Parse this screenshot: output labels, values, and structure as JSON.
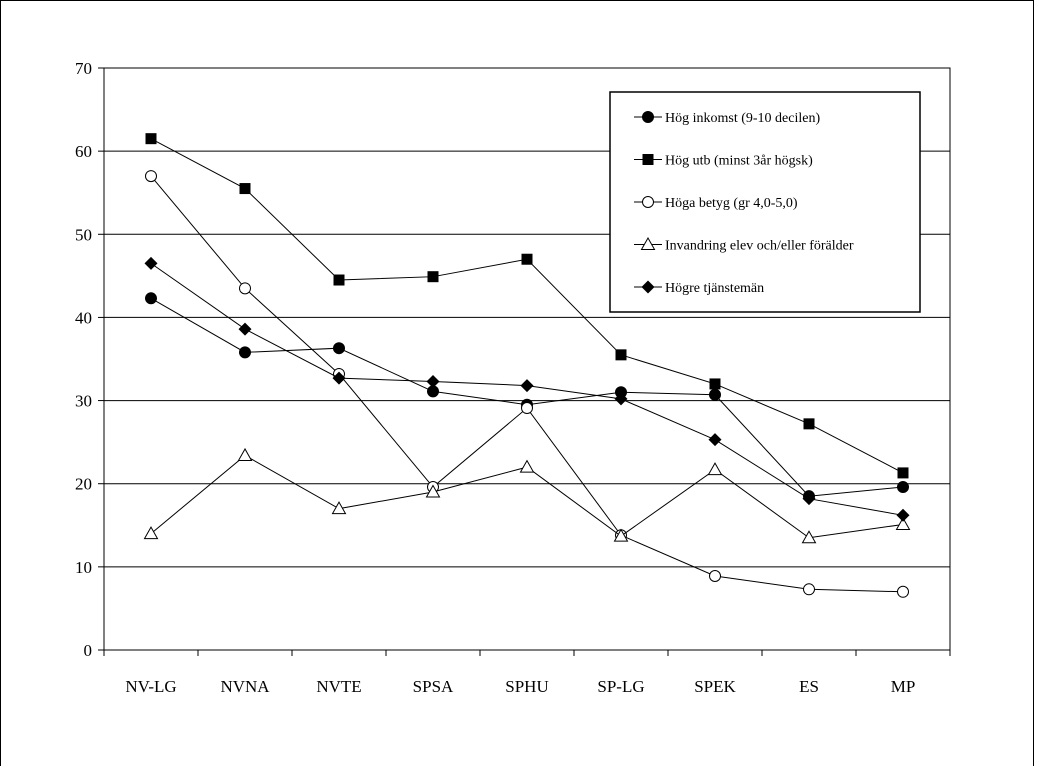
{
  "chart_data": {
    "type": "line",
    "categories": [
      "NV-LG",
      "NVNA",
      "NVTE",
      "SPSA",
      "SPHU",
      "SP-LG",
      "SPEK",
      "ES",
      "MP"
    ],
    "ylim": [
      0,
      70
    ],
    "yticks": [
      "0",
      "10",
      "20",
      "30",
      "40",
      "50",
      "60",
      "70"
    ],
    "grid": true,
    "legend_position": "top-right",
    "series": [
      {
        "name": "Hög inkomst (9-10 decilen)",
        "marker": "filled-circle",
        "values": [
          42.3,
          35.8,
          36.3,
          31.1,
          29.5,
          31.0,
          30.7,
          18.5,
          19.6
        ]
      },
      {
        "name": "Hög utb (minst 3år högsk)",
        "marker": "filled-square",
        "values": [
          61.5,
          55.5,
          44.5,
          44.9,
          47.0,
          35.5,
          32.0,
          27.2,
          21.3
        ]
      },
      {
        "name": "Höga betyg (gr 4,0-5,0)",
        "marker": "open-circle",
        "values": [
          57.0,
          43.5,
          33.2,
          19.6,
          29.1,
          13.8,
          8.9,
          7.3,
          7.0
        ]
      },
      {
        "name": " Invandring elev och/eller förälder",
        "marker": "open-triangle",
        "values": [
          14.0,
          23.4,
          17.0,
          19.0,
          22.0,
          13.7,
          21.7,
          13.5,
          15.1
        ]
      },
      {
        "name": "Högre tjänstemän",
        "marker": "filled-diamond",
        "values": [
          46.5,
          38.6,
          32.7,
          32.3,
          31.8,
          30.2,
          25.3,
          18.2,
          16.2
        ]
      }
    ]
  }
}
